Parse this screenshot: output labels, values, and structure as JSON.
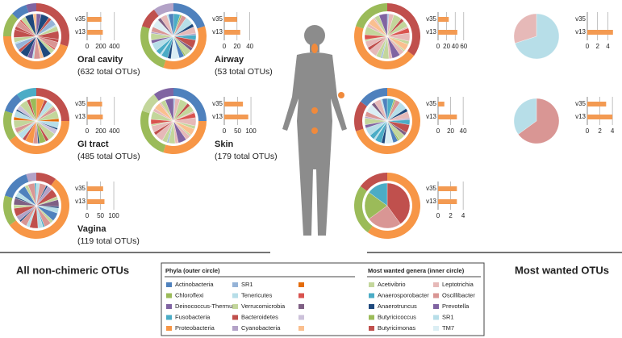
{
  "bar_color": "#f39a52",
  "panels": [
    {
      "title": "Oral cavity",
      "subtitle": "(632 total OTUs)",
      "bar_labels": [
        "v35",
        "v13"
      ],
      "values": [
        210,
        230
      ],
      "xlim": [
        0,
        450
      ],
      "xticks": [
        0,
        200,
        400
      ]
    },
    {
      "title": "Airway",
      "subtitle": "(53 total OTUs)",
      "bar_labels": [
        "v35",
        "v13"
      ],
      "values": [
        20,
        25
      ],
      "xlim": [
        0,
        48
      ],
      "xticks": [
        0,
        20,
        40
      ]
    },
    {
      "title": "GI tract",
      "subtitle": "(485 total OTUs)",
      "bar_labels": [
        "v35",
        "v13"
      ],
      "values": [
        220,
        230
      ],
      "xlim": [
        0,
        450
      ],
      "xticks": [
        0,
        200,
        400
      ]
    },
    {
      "title": "Skin",
      "subtitle": "(179 total OTUs)",
      "bar_labels": [
        "v35",
        "v13"
      ],
      "values": [
        70,
        90
      ],
      "xlim": [
        0,
        115
      ],
      "xticks": [
        0,
        50,
        100
      ]
    },
    {
      "title": "Vagina",
      "subtitle": "(119 total OTUs)",
      "bar_labels": [
        "v35",
        "v13"
      ],
      "values": [
        60,
        65
      ],
      "xlim": [
        0,
        115
      ],
      "xticks": [
        0,
        50,
        100
      ]
    }
  ],
  "most_wanted_panels": [
    {
      "bar_labels": [
        "v35",
        "v13"
      ],
      "values": [
        25,
        45
      ],
      "xlim": [
        0,
        66
      ],
      "xticks": [
        0,
        20,
        40,
        60
      ]
    },
    {
      "bar_labels": [
        "v35",
        "v13"
      ],
      "values": [
        0,
        5
      ],
      "xlim": [
        0,
        5.5
      ],
      "xticks": [
        0,
        2,
        4
      ]
    },
    {
      "bar_labels": [
        "v35",
        "v13"
      ],
      "values": [
        10,
        30
      ],
      "xlim": [
        0,
        45
      ],
      "xticks": [
        0,
        20,
        40
      ]
    },
    {
      "bar_labels": [
        "v35",
        "v13"
      ],
      "values": [
        3,
        4
      ],
      "xlim": [
        0,
        4.5
      ],
      "xticks": [
        0,
        2,
        4
      ]
    },
    {
      "bar_labels": [
        "v35",
        "v13"
      ],
      "values": [
        3,
        3
      ],
      "xlim": [
        0,
        4.5
      ],
      "xticks": [
        0,
        2,
        4
      ]
    }
  ],
  "section_titles": {
    "left": "All non-chimeric OTUs",
    "right": "Most wanted OTUs"
  },
  "legend": {
    "phyla": {
      "title": "Phyla (outer circle)",
      "items": [
        {
          "label": "Actinobacteria",
          "color": "#4f81bd"
        },
        {
          "label": "Chloroflexi",
          "color": "#9bbb59"
        },
        {
          "label": "Deinococcus-Thermus",
          "color": "#8064a2"
        },
        {
          "label": "Fusobacteria",
          "color": "#4bacc6"
        },
        {
          "label": "Proteobacteria",
          "color": "#f79646"
        },
        {
          "label": "SR1",
          "color": "#95b3d7"
        },
        {
          "label": "Tenericutes",
          "color": "#b7dee8"
        },
        {
          "label": "Verrucomicrobia",
          "color": "#c3d69b"
        },
        {
          "label": "Bacteroidetes",
          "color": "#c0504d"
        },
        {
          "label": "Cyanobacteria",
          "color": "#b3a2c7"
        },
        {
          "color": "#e46c0a"
        },
        {
          "color": "#d9534f"
        },
        {
          "color": "#7f6084"
        },
        {
          "color": "#ccc1da"
        },
        {
          "color": "#fabf8f"
        }
      ]
    },
    "genera": {
      "title": "Most wanted genera (inner circle)",
      "items": [
        {
          "label": "Acetivibrio",
          "color": "#c3d69b"
        },
        {
          "label": "Anaerosporobacter",
          "color": "#4bacc6"
        },
        {
          "label": "Anaerotruncus",
          "color": "#1f497d"
        },
        {
          "label": "Butyricicoccus",
          "color": "#9bbb59"
        },
        {
          "label": "Butyricimonas",
          "color": "#c0504d"
        },
        {
          "label": "Leptotrichia",
          "color": "#e6b9b8"
        },
        {
          "label": "Oscillibacter",
          "color": "#d99694"
        },
        {
          "label": "Prevotella",
          "color": "#8064a2"
        },
        {
          "label": "SR1",
          "color": "#b7dee8"
        },
        {
          "label": "TM7",
          "color": "#dbeef4"
        }
      ]
    }
  }
}
